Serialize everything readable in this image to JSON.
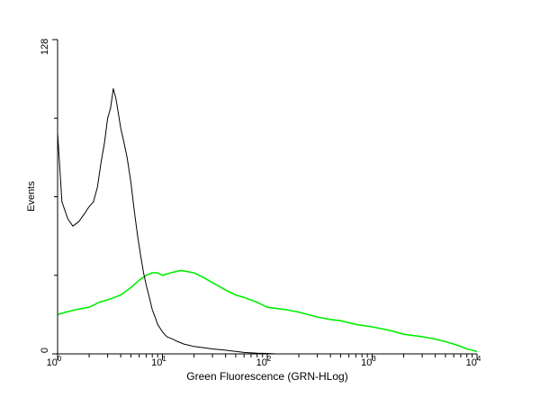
{
  "chart_data": {
    "type": "line",
    "title": "",
    "xlabel": "Green Fluorescence (GRN-HLog)",
    "ylabel": "Events",
    "xscale": "log",
    "xlim": [
      1,
      10000
    ],
    "ylim": [
      0,
      128
    ],
    "grid": false,
    "legend": "none",
    "x_ticks": [
      {
        "value": 1,
        "base": "10",
        "exp": "0"
      },
      {
        "value": 10,
        "base": "10",
        "exp": "1"
      },
      {
        "value": 100,
        "base": "10",
        "exp": "2"
      },
      {
        "value": 1000,
        "base": "10",
        "exp": "3"
      },
      {
        "value": 10000,
        "base": "10",
        "exp": "4"
      }
    ],
    "y_ticks": [
      {
        "value": 0,
        "label": "0"
      },
      {
        "value": 128,
        "label": "128"
      }
    ],
    "series": [
      {
        "color": "#000000",
        "x": [
          1.0,
          1.1,
          1.25,
          1.4,
          1.6,
          1.8,
          2.0,
          2.2,
          2.4,
          2.6,
          2.8,
          3.0,
          3.2,
          3.4,
          3.6,
          3.8,
          4.0,
          4.3,
          4.6,
          5.0,
          5.4,
          5.8,
          6.2,
          6.6,
          7.0,
          7.5,
          8.0,
          8.5,
          9.0,
          10.0,
          11.0,
          12.5,
          14.0,
          16.0,
          18.0,
          20.0,
          25.0,
          30.0,
          40.0,
          50.0,
          60.0,
          80.0,
          100.0,
          120.0
        ],
        "y": [
          90,
          62,
          55,
          52,
          54,
          57,
          60,
          62,
          68,
          78,
          86,
          96,
          100,
          108,
          104,
          98,
          92,
          86,
          80,
          70,
          58,
          48,
          40,
          33,
          28,
          23,
          18,
          15,
          12,
          9,
          7,
          6,
          5,
          4,
          3.5,
          3,
          2.5,
          2,
          1.5,
          1,
          0.6,
          0.3,
          0.2,
          0
        ]
      },
      {
        "color": "#00ee00",
        "x": [
          1.0,
          1.2,
          1.5,
          2.0,
          2.5,
          3.0,
          3.5,
          4.0,
          5.0,
          6.0,
          7.0,
          8.0,
          9.0,
          10.0,
          12.0,
          15.0,
          20.0,
          25.0,
          30.0,
          40.0,
          50.0,
          60.0,
          80.0,
          100.0,
          150.0,
          200.0,
          300.0,
          400.0,
          500.0,
          700.0,
          1000.0,
          1500.0,
          2000.0,
          3000.0,
          4000.0,
          5000.0,
          6000.0,
          7000.0,
          8000.0,
          9000.0,
          10000.0
        ],
        "y": [
          16,
          17,
          18,
          19,
          21,
          22,
          23,
          24,
          27,
          30,
          32,
          33,
          33,
          32,
          33,
          34,
          33,
          31,
          29,
          26,
          24,
          23,
          21,
          19,
          18,
          17,
          15,
          14,
          13.5,
          12,
          11,
          9.5,
          8,
          7,
          6,
          5,
          4,
          3,
          2,
          1.5,
          1
        ]
      }
    ]
  }
}
